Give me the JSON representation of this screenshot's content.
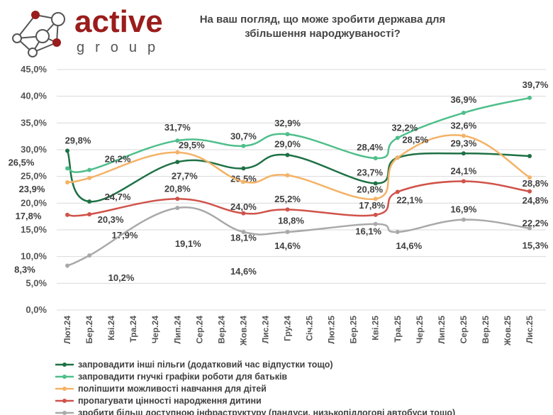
{
  "logo": {
    "name": "active",
    "sub": "group"
  },
  "chart_data": {
    "type": "line",
    "title": "На ваш погляд, що може зробити держава для збільшення народжуваності?",
    "categories": [
      "Лют.24",
      "Бер.24",
      "Кві.24",
      "Тра.24",
      "Чер.24",
      "Лип.24",
      "Сер.24",
      "Вер.24",
      "Жов.24",
      "Лис.24",
      "Гру.24",
      "Січ.25",
      "Лют.25",
      "Бер.25",
      "Кві.25",
      "Тра.25",
      "Чер.25",
      "Лип.25",
      "Сер.25",
      "Вер.25",
      "Жов.25",
      "Лис.25"
    ],
    "x": [
      "Лют.24",
      "Бер.24",
      "Лип.24",
      "Жов.24",
      "Гру.24",
      "Кві.25",
      "Тра.25",
      "Сер.25",
      "Лис.25"
    ],
    "ylim": [
      0,
      45
    ],
    "yticks": [
      "0,0%",
      "5,0%",
      "10,0%",
      "15,0%",
      "20,0%",
      "25,0%",
      "30,0%",
      "35,0%",
      "40,0%",
      "45,0%"
    ],
    "grid": true,
    "legend": "bottom",
    "series": [
      {
        "name": "запровадити інші пільги (додатковий час відпустки тощо)",
        "color": "#1e7145",
        "values": [
          29.8,
          20.3,
          27.7,
          26.5,
          29.0,
          23.7,
          28.5,
          29.3,
          28.8
        ],
        "labels": [
          "29,8%",
          "20,3%",
          "27,7%",
          "26,5%",
          "29,0%",
          "23,7%",
          "",
          "29,3%",
          "28,8%"
        ]
      },
      {
        "name": "запровадити гнучкі графіки роботи для батьків",
        "color": "#4fbf8b",
        "values": [
          26.5,
          26.2,
          31.7,
          30.7,
          32.9,
          28.4,
          32.2,
          36.9,
          39.7
        ],
        "labels": [
          "26,5%",
          "26,2%",
          "31,7%",
          "30,7%",
          "32,9%",
          "28,4%",
          "32,2%",
          "36,9%",
          "39,7%"
        ]
      },
      {
        "name": "поліпшити можливості навчання для дітей",
        "color": "#f4b266",
        "values": [
          23.9,
          24.7,
          29.5,
          24.0,
          25.2,
          20.8,
          28.5,
          32.6,
          24.8
        ],
        "labels": [
          "23,9%",
          "24,7%",
          "29,5%",
          "24,0%",
          "25,2%",
          "20,8%",
          "28,5%",
          "32,6%",
          "24,8%"
        ]
      },
      {
        "name": "пропагувати цінності народження дитини",
        "color": "#d0534a",
        "values": [
          17.8,
          17.9,
          20.8,
          18.1,
          18.8,
          17.8,
          22.1,
          24.1,
          22.2
        ],
        "labels": [
          "17,8%",
          "17,9%",
          "20,8%",
          "18,1%",
          "18,8%",
          "17,8%",
          "22,1%",
          "24,1%",
          "22,2%"
        ]
      },
      {
        "name": "зробити більш доступною інфраструктуру (пандуси, низькопідлогові автобуси тощо)",
        "color": "#a9a9a9",
        "values": [
          8.3,
          10.2,
          19.1,
          14.6,
          14.6,
          16.1,
          14.6,
          16.9,
          15.3
        ],
        "labels": [
          "8,3%",
          "10,2%",
          "19,1%",
          "14,6%",
          "14,6%",
          "16,1%",
          "14,6%",
          "16,9%",
          "15,3%"
        ]
      }
    ]
  }
}
